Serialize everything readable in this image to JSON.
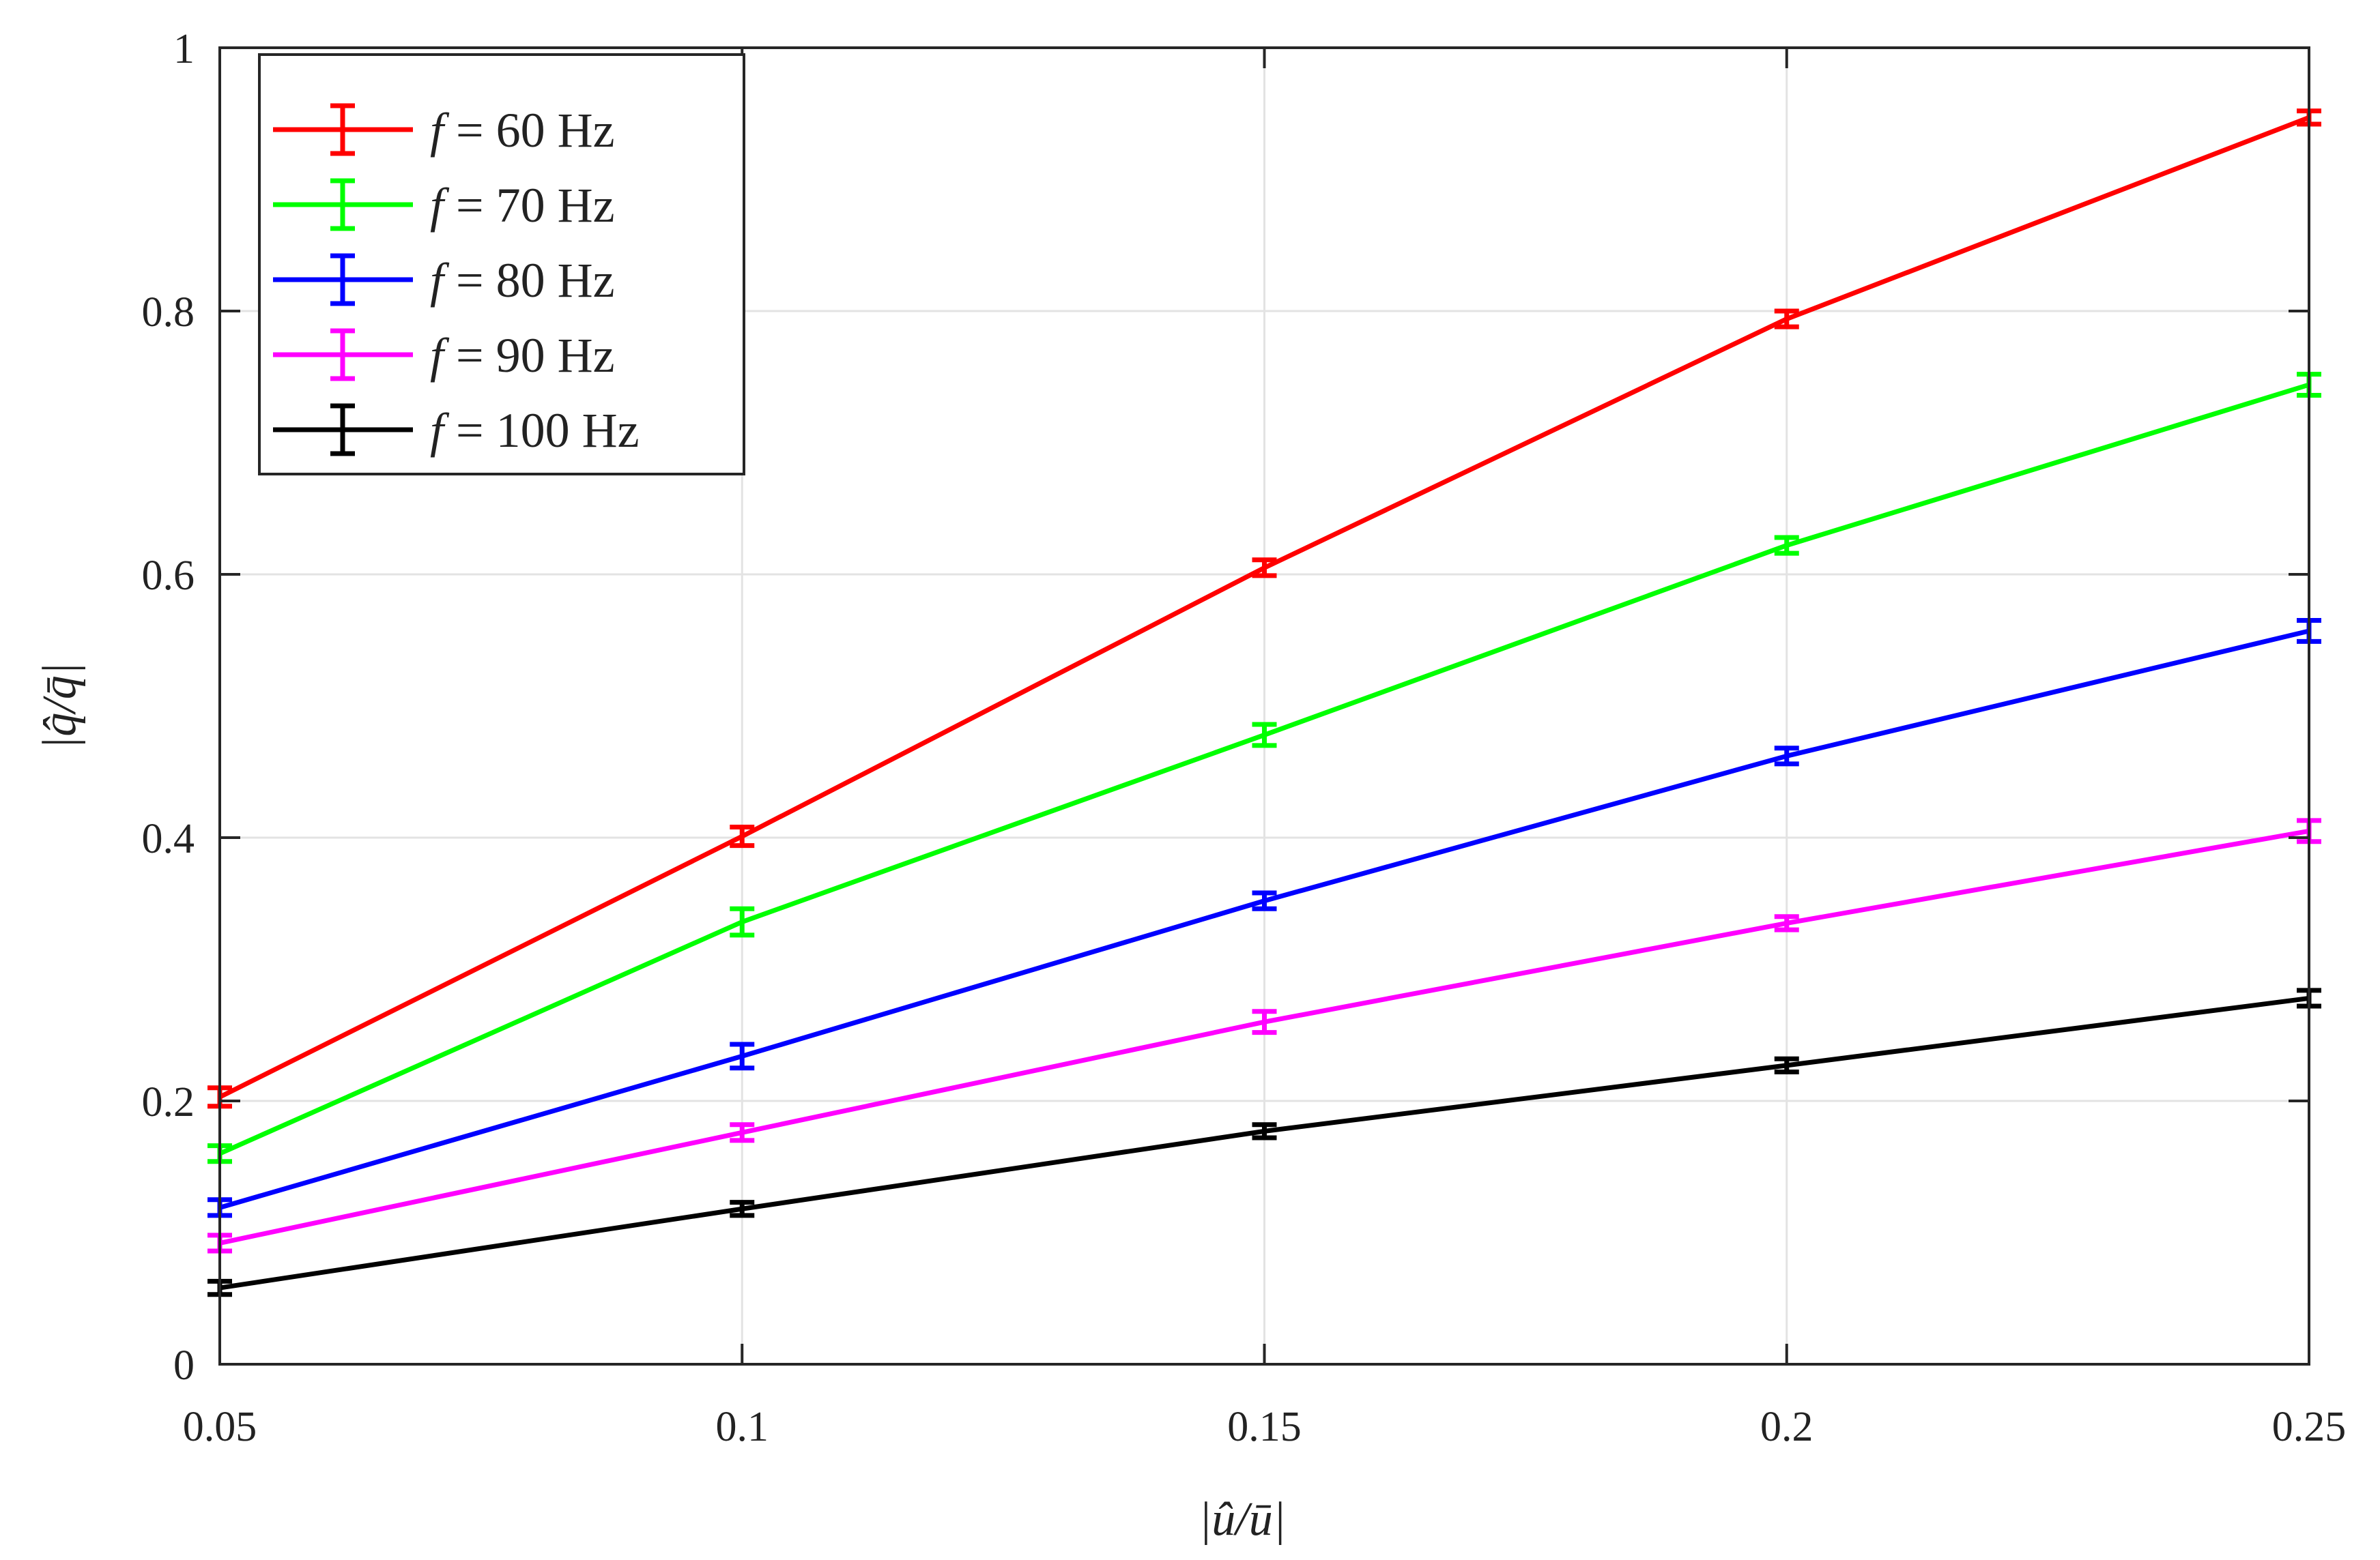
{
  "chart_data": {
    "type": "line",
    "xlabel": "|û/ū|",
    "ylabel": "|q̂/q̄|",
    "xlim": [
      0.05,
      0.25
    ],
    "ylim": [
      0,
      1
    ],
    "x": [
      0.05,
      0.1,
      0.15,
      0.2,
      0.25
    ],
    "x_ticks": [
      "0.05",
      "0.1",
      "0.15",
      "0.2",
      "0.25"
    ],
    "y_ticks": [
      "0",
      "0.2",
      "0.4",
      "0.6",
      "0.8",
      "1"
    ],
    "grid": true,
    "error_bars": true,
    "legend_position": "top-left",
    "series": [
      {
        "name": "f = 60 Hz",
        "var": "f",
        "label": " = 60 Hz",
        "color": "#ff0000",
        "values": [
          0.203,
          0.401,
          0.605,
          0.794,
          0.947
        ],
        "err": [
          0.007,
          0.007,
          0.006,
          0.006,
          0.005
        ]
      },
      {
        "name": "f = 70 Hz",
        "var": "f",
        "label": " = 70 Hz",
        "color": "#00ff00",
        "values": [
          0.16,
          0.336,
          0.478,
          0.622,
          0.744
        ],
        "err": [
          0.006,
          0.01,
          0.008,
          0.006,
          0.008
        ]
      },
      {
        "name": "f = 80 Hz",
        "var": "f",
        "label": " = 80 Hz",
        "color": "#0000ff",
        "values": [
          0.119,
          0.234,
          0.352,
          0.462,
          0.557
        ],
        "err": [
          0.006,
          0.009,
          0.006,
          0.006,
          0.008
        ]
      },
      {
        "name": "f = 90 Hz",
        "var": "f",
        "label": " = 90 Hz",
        "color": "#ff00ff",
        "values": [
          0.092,
          0.176,
          0.26,
          0.335,
          0.405
        ],
        "err": [
          0.006,
          0.006,
          0.008,
          0.005,
          0.008
        ]
      },
      {
        "name": "f = 100 Hz",
        "var": "f",
        "label": " = 100 Hz",
        "color": "#000000",
        "values": [
          0.058,
          0.118,
          0.177,
          0.227,
          0.278
        ],
        "err": [
          0.005,
          0.005,
          0.005,
          0.005,
          0.006
        ]
      }
    ]
  }
}
